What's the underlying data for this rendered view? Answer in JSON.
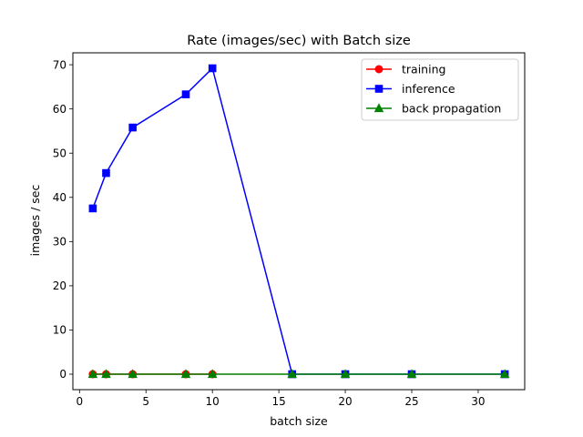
{
  "chart_data": {
    "type": "line",
    "title": "Rate (images/sec) with Batch size",
    "xlabel": "batch size",
    "ylabel": "images / sec",
    "xlim": [
      -0.5,
      33.5
    ],
    "ylim": [
      -3.5,
      72.7
    ],
    "x_ticks": [
      0,
      5,
      10,
      15,
      20,
      25,
      30
    ],
    "y_ticks": [
      0,
      10,
      20,
      30,
      40,
      50,
      60,
      70
    ],
    "grid": false,
    "legend_position": "top-right",
    "x": [
      1,
      2,
      4,
      8,
      10,
      16,
      20,
      25,
      32
    ],
    "series": [
      {
        "name": "training",
        "color": "#ff0000",
        "marker": "circle",
        "x": [
          1,
          2,
          4,
          8,
          10
        ],
        "values": [
          0,
          0,
          0,
          0,
          0
        ]
      },
      {
        "name": "inference",
        "color": "#0000ff",
        "marker": "square",
        "x": [
          1,
          2,
          4,
          8,
          10,
          16,
          20,
          25,
          32
        ],
        "values": [
          37.5,
          45.5,
          55.8,
          63.3,
          69.2,
          0,
          0,
          0,
          0
        ]
      },
      {
        "name": "back propagation",
        "color": "#008000",
        "marker": "triangle",
        "x": [
          1,
          2,
          4,
          8,
          10,
          16,
          20,
          25,
          32
        ],
        "values": [
          0,
          0,
          0,
          0,
          0,
          0,
          0,
          0,
          0
        ]
      }
    ]
  }
}
